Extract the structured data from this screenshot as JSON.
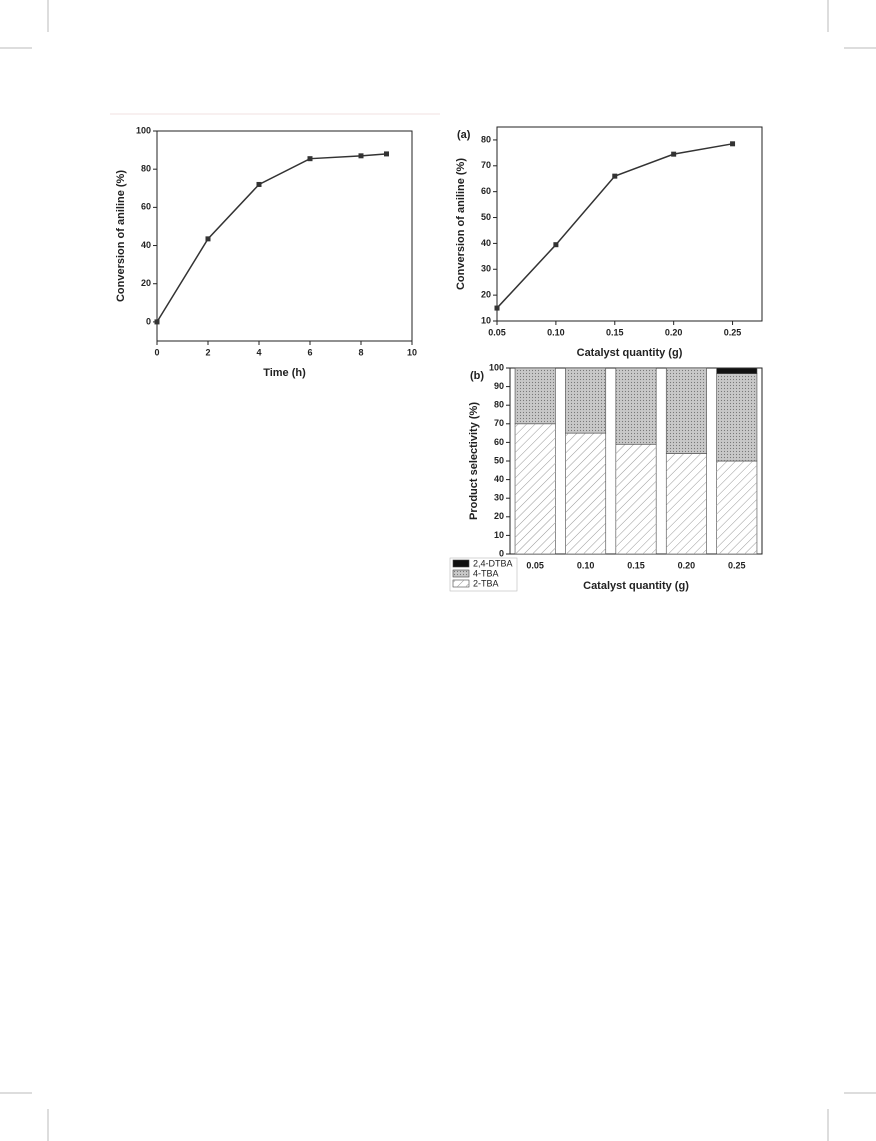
{
  "chart_data": [
    {
      "type": "line",
      "xlabel": "Time (h)",
      "ylabel": "Conversion of aniline (%)",
      "x": [
        0,
        2,
        4,
        6,
        8,
        9
      ],
      "values": [
        0,
        43.5,
        72,
        85.5,
        87,
        88
      ],
      "color": "#333333",
      "xlim": [
        0,
        10
      ],
      "xticks": [
        0,
        2,
        4,
        6,
        8,
        10
      ],
      "ylim": [
        -10,
        100
      ],
      "yticks": [
        0,
        20,
        40,
        60,
        80,
        100
      ]
    },
    {
      "type": "line",
      "panel": "(a)",
      "xlabel": "Catalyst quantity (g)",
      "ylabel": "Conversion of aniline (%)",
      "x": [
        0.05,
        0.1,
        0.15,
        0.2,
        0.25
      ],
      "values": [
        15,
        39.5,
        66,
        74.5,
        78.5
      ],
      "color": "#333333",
      "xlim": [
        0.05,
        0.275
      ],
      "xticks": [
        0.05,
        {
          "value": 0.1,
          "label": "0.10"
        },
        0.15,
        {
          "value": 0.2,
          "label": "0.20"
        },
        0.25
      ],
      "ylim": [
        10,
        85
      ],
      "yticks": [
        10,
        20,
        30,
        40,
        50,
        60,
        70,
        80
      ]
    },
    {
      "type": "stacked_bar",
      "panel": "(b)",
      "xlabel": "Catalyst quantity (g)",
      "ylabel": "Product selectivity (%)",
      "categories": [
        "0.05",
        "0.10",
        "0.15",
        "0.20",
        "0.25"
      ],
      "series": [
        {
          "name": "2-TBA",
          "color": "#ffffff",
          "pattern": "hatch",
          "values": [
            70,
            65,
            59,
            54,
            50
          ]
        },
        {
          "name": "4-TBA",
          "color": "#c8c8c8",
          "pattern": "dots",
          "values": [
            30,
            35,
            41,
            46,
            47
          ]
        },
        {
          "name": "2,4-DTBA",
          "color": "#111111",
          "pattern": "solid",
          "values": [
            0,
            0,
            0,
            0,
            3
          ]
        }
      ],
      "ylim": [
        0,
        100
      ],
      "yticks": [
        0,
        10,
        20,
        30,
        40,
        50,
        60,
        70,
        80,
        90,
        100
      ],
      "legend": "lower left"
    }
  ]
}
